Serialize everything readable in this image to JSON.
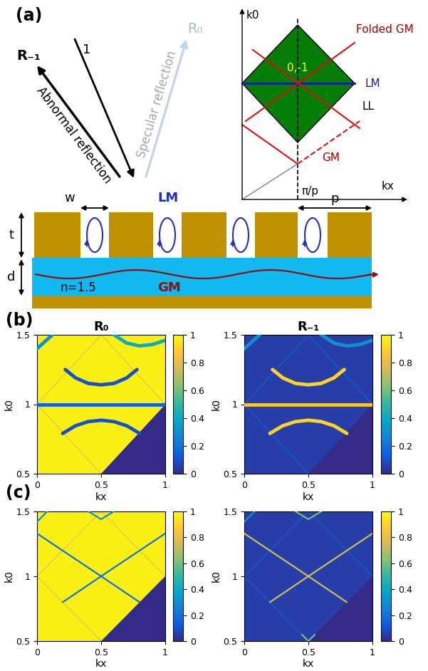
{
  "panel_a": {
    "label": "(a)",
    "incident": "1",
    "abnormal_order": "R₋₁",
    "abnormal_text": "Abnormal reflection",
    "specular_order": "R₀",
    "specular_text": "Specular reflection",
    "width": "w",
    "local_mode": "LM",
    "thickness": "t",
    "period": "p",
    "spacer": "d",
    "index": "n=1.5",
    "guided_mode": "GM",
    "inset": {
      "y_label": "k0",
      "x_label": "kx",
      "x_mark": "π/p",
      "order": "0,-1",
      "folded": "Folded GM",
      "local": "LM",
      "light_line": "LL",
      "guided": "GM"
    }
  },
  "panel_labels": [
    "(b)",
    "(c)"
  ],
  "chart_data": [
    {
      "type": "heatmap",
      "title": "R₀",
      "x_label": "kx",
      "y_label": "k0",
      "xlim": [
        0,
        1
      ],
      "ylim": [
        0.5,
        1.5
      ],
      "xticks": [
        0,
        0.5,
        1
      ],
      "yticks": [
        0.5,
        1,
        1.5
      ],
      "background": 0.97,
      "regions": [
        {
          "points": [
            [
              0.5,
              0.5
            ],
            [
              1,
              0.5
            ],
            [
              1,
              1
            ]
          ],
          "value": 0
        }
      ],
      "edges": [
        {
          "points": [
            [
              0,
              1
            ],
            [
              0.5,
              0.5
            ]
          ],
          "value": 0.8
        },
        {
          "points": [
            [
              0,
              1
            ],
            [
              0.5,
              1.5
            ],
            [
              1,
              1
            ]
          ],
          "value": 0.8
        }
      ],
      "bands": [
        {
          "points": [
            [
              0,
              1
            ],
            [
              0.25,
              1
            ],
            [
              0.5,
              1
            ],
            [
              0.75,
              1
            ],
            [
              1,
              1
            ]
          ],
          "value": 0.15
        },
        {
          "points": [
            [
              0.22,
              1.25
            ],
            [
              0.3,
              1.19
            ],
            [
              0.4,
              1.15
            ],
            [
              0.5,
              1.14
            ],
            [
              0.6,
              1.15
            ],
            [
              0.7,
              1.19
            ],
            [
              0.78,
              1.25
            ]
          ],
          "value": 0.1
        },
        {
          "points": [
            [
              0.2,
              0.79
            ],
            [
              0.3,
              0.845
            ],
            [
              0.4,
              0.875
            ],
            [
              0.5,
              0.885
            ],
            [
              0.6,
              0.875
            ],
            [
              0.7,
              0.845
            ],
            [
              0.8,
              0.79
            ]
          ],
          "value": 0.1
        },
        {
          "points": [
            [
              0,
              1.4
            ],
            [
              0.06,
              1.45
            ],
            [
              0.12,
              1.5
            ]
          ],
          "value": 0.3
        },
        {
          "points": [
            [
              0.6,
              1.5
            ],
            [
              0.7,
              1.44
            ],
            [
              0.8,
              1.42
            ],
            [
              0.9,
              1.43
            ],
            [
              1,
              1.46
            ]
          ],
          "value": 0.4
        }
      ],
      "colorbar": {
        "range": [
          0,
          1
        ],
        "ticks": [
          0,
          0.2,
          0.4,
          0.6,
          0.8,
          1
        ]
      }
    },
    {
      "type": "heatmap",
      "title": "R₋₁",
      "x_label": "kx",
      "y_label": "k0",
      "xlim": [
        0,
        1
      ],
      "ylim": [
        0.5,
        1.5
      ],
      "xticks": [
        0,
        0.5,
        1
      ],
      "yticks": [
        0.5,
        1,
        1.5
      ],
      "background": 0.05,
      "regions": [
        {
          "points": [
            [
              0.5,
              0.5
            ],
            [
              1,
              0.5
            ],
            [
              1,
              1
            ]
          ],
          "value": 0
        }
      ],
      "edges": [
        {
          "points": [
            [
              0,
              1
            ],
            [
              0.5,
              0.5
            ]
          ],
          "value": 0.15
        },
        {
          "points": [
            [
              0,
              1
            ],
            [
              0.5,
              1.5
            ],
            [
              1,
              1
            ]
          ],
          "value": 0.15
        }
      ],
      "bands": [
        {
          "points": [
            [
              0,
              1
            ],
            [
              0.25,
              1
            ],
            [
              0.5,
              1
            ],
            [
              0.75,
              1
            ],
            [
              1,
              1
            ]
          ],
          "value": 0.85
        },
        {
          "points": [
            [
              0.22,
              1.25
            ],
            [
              0.3,
              1.19
            ],
            [
              0.4,
              1.15
            ],
            [
              0.5,
              1.14
            ],
            [
              0.6,
              1.15
            ],
            [
              0.7,
              1.19
            ],
            [
              0.78,
              1.25
            ]
          ],
          "value": 0.9
        },
        {
          "points": [
            [
              0.2,
              0.79
            ],
            [
              0.3,
              0.845
            ],
            [
              0.4,
              0.875
            ],
            [
              0.5,
              0.885
            ],
            [
              0.6,
              0.875
            ],
            [
              0.7,
              0.845
            ],
            [
              0.8,
              0.79
            ]
          ],
          "value": 0.9
        },
        {
          "points": [
            [
              0,
              1.4
            ],
            [
              0.06,
              1.45
            ],
            [
              0.12,
              1.5
            ]
          ],
          "value": 0.3
        },
        {
          "points": [
            [
              0.6,
              1.5
            ],
            [
              0.7,
              1.44
            ],
            [
              0.8,
              1.42
            ],
            [
              0.9,
              1.43
            ],
            [
              1,
              1.46
            ]
          ],
          "value": 0.3
        }
      ],
      "colorbar": {
        "range": [
          0,
          1
        ],
        "ticks": [
          0,
          0.2,
          0.4,
          0.6,
          0.8,
          1
        ]
      }
    },
    {
      "type": "heatmap",
      "x_label": "kx",
      "y_label": "k0",
      "xlim": [
        0,
        1
      ],
      "ylim": [
        0.5,
        1.5
      ],
      "xticks": [
        0,
        0.5,
        1
      ],
      "yticks": [
        0.5,
        1,
        1.5
      ],
      "background": 0.97,
      "regions": [
        {
          "points": [
            [
              0.5,
              0.5
            ],
            [
              1,
              0.5
            ],
            [
              1,
              1
            ]
          ],
          "value": 0
        }
      ],
      "edges": [
        {
          "points": [
            [
              0,
              1
            ],
            [
              0.5,
              0.5
            ]
          ],
          "value": 0.8
        },
        {
          "points": [
            [
              0,
              1
            ],
            [
              0.5,
              1.5
            ],
            [
              1,
              1
            ]
          ],
          "value": 0.8
        }
      ],
      "bands": [
        {
          "points": [
            [
              0.2,
              0.8
            ],
            [
              0.5,
              1
            ],
            [
              1,
              1.33
            ]
          ],
          "value": 0.2
        },
        {
          "points": [
            [
              0,
              1.33
            ],
            [
              0.5,
              1
            ],
            [
              0.8,
              0.8
            ]
          ],
          "value": 0.2
        },
        {
          "points": [
            [
              0,
              1.42
            ],
            [
              0.08,
              1.5
            ]
          ],
          "value": 0.3
        },
        {
          "points": [
            [
              0.4,
              1.5
            ],
            [
              0.5,
              1.44
            ],
            [
              0.6,
              1.5
            ]
          ],
          "value": 0.3
        }
      ],
      "colorbar": {
        "range": [
          0,
          1
        ],
        "ticks": [
          0,
          0.2,
          0.4,
          0.6,
          0.8,
          1
        ]
      }
    },
    {
      "type": "heatmap",
      "x_label": "kx",
      "y_label": "k0",
      "xlim": [
        0,
        1
      ],
      "ylim": [
        0.5,
        1.5
      ],
      "xticks": [
        0,
        0.5,
        1
      ],
      "yticks": [
        0.5,
        1,
        1.5
      ],
      "background": 0.05,
      "regions": [
        {
          "points": [
            [
              0.5,
              0.5
            ],
            [
              1,
              0.5
            ],
            [
              1,
              1
            ]
          ],
          "value": 0
        }
      ],
      "edges": [
        {
          "points": [
            [
              0,
              1
            ],
            [
              0.5,
              0.5
            ]
          ],
          "value": 0.15
        },
        {
          "points": [
            [
              0,
              1
            ],
            [
              0.5,
              1.5
            ],
            [
              1,
              1
            ]
          ],
          "value": 0.15
        }
      ],
      "bands": [
        {
          "points": [
            [
              0.2,
              0.8
            ],
            [
              0.5,
              1
            ],
            [
              1,
              1.33
            ]
          ],
          "value": 0.75
        },
        {
          "points": [
            [
              0,
              1.33
            ],
            [
              0.5,
              1
            ],
            [
              0.8,
              0.8
            ]
          ],
          "value": 0.75
        },
        {
          "points": [
            [
              0,
              1.42
            ],
            [
              0.08,
              1.5
            ]
          ],
          "value": 0.3
        },
        {
          "points": [
            [
              0.4,
              1.5
            ],
            [
              0.5,
              1.44
            ],
            [
              0.6,
              1.5
            ]
          ],
          "value": 0.6
        },
        {
          "points": [
            [
              0.45,
              0.55
            ],
            [
              0.5,
              0.5
            ],
            [
              0.55,
              0.55
            ]
          ],
          "value": 0.6
        }
      ],
      "colorbar": {
        "range": [
          0,
          1
        ],
        "ticks": [
          0,
          0.2,
          0.4,
          0.6,
          0.8,
          1
        ]
      }
    }
  ]
}
